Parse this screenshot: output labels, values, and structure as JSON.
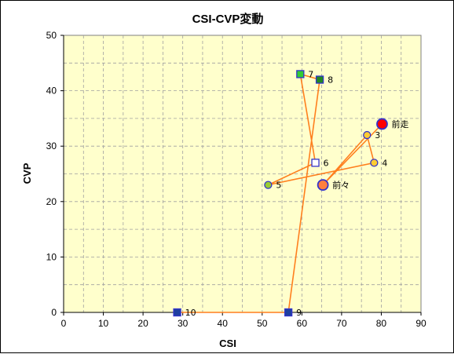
{
  "chart_data": {
    "type": "scatter",
    "title": "CSI-CVP変動",
    "xlabel": "CSI",
    "ylabel": "CVP",
    "xlim": [
      0,
      90
    ],
    "ylim": [
      0,
      50
    ],
    "xticks": [
      0,
      10,
      20,
      30,
      40,
      50,
      60,
      70,
      80,
      90
    ],
    "yticks": [
      0,
      10,
      20,
      30,
      40,
      50
    ],
    "grid": true,
    "plot_background": "#ffffcc",
    "line_color": "#ff7f1e",
    "points": [
      {
        "label": "前走",
        "x": 80.2,
        "y": 34.0,
        "marker": "circle",
        "size": "large",
        "fill": "#ff0000",
        "stroke": "#3333cc"
      },
      {
        "label": "前々",
        "x": 65.3,
        "y": 23.0,
        "marker": "circle",
        "size": "large",
        "fill": "#ff7f3f",
        "stroke": "#3333cc"
      },
      {
        "label": "3",
        "x": 76.4,
        "y": 32.0,
        "marker": "circle",
        "size": "small",
        "fill": "#ffcc33",
        "stroke": "#3333cc"
      },
      {
        "label": "4",
        "x": 78.2,
        "y": 27.0,
        "marker": "circle",
        "size": "small",
        "fill": "#ffcc33",
        "stroke": "#3333cc"
      },
      {
        "label": "5",
        "x": 51.5,
        "y": 23.0,
        "marker": "circle",
        "size": "small",
        "fill": "#99cc33",
        "stroke": "#3333cc"
      },
      {
        "label": "6",
        "x": 63.4,
        "y": 27.0,
        "marker": "square",
        "size": "small",
        "fill": "#ffffff",
        "stroke": "#3333cc"
      },
      {
        "label": "7",
        "x": 59.6,
        "y": 43.0,
        "marker": "square",
        "size": "small",
        "fill": "#33cc33",
        "stroke": "#3333cc"
      },
      {
        "label": "8",
        "x": 64.5,
        "y": 42.0,
        "marker": "square",
        "size": "small",
        "fill": "#228822",
        "stroke": "#3333cc"
      },
      {
        "label": "9",
        "x": 56.6,
        "y": 0.0,
        "marker": "square",
        "size": "small",
        "fill": "#1f3f9f",
        "stroke": "#3333cc"
      },
      {
        "label": "10",
        "x": 28.6,
        "y": 0.0,
        "marker": "square",
        "size": "small",
        "fill": "#1f3f9f",
        "stroke": "#3333cc"
      }
    ]
  }
}
